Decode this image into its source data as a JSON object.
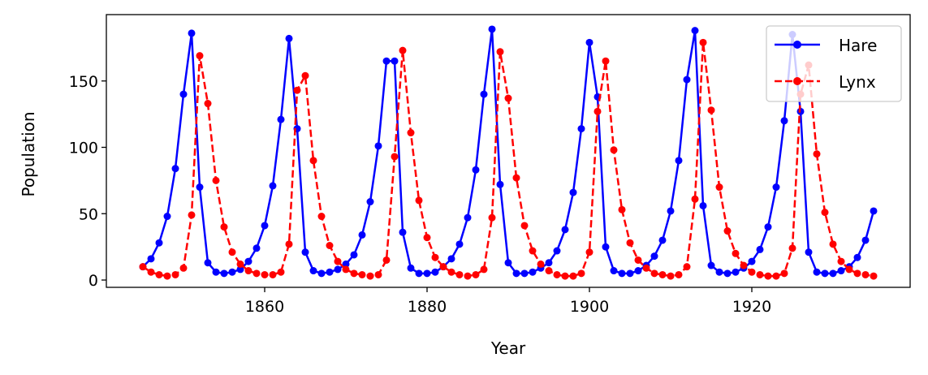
{
  "chart_data": {
    "type": "line",
    "title": "",
    "xlabel": "Year",
    "ylabel": "Population",
    "xlim": [
      1840.5,
      1939.5
    ],
    "ylim": [
      -5.5,
      200
    ],
    "xticks": [
      1860,
      1880,
      1900,
      1920
    ],
    "yticks": [
      0,
      50,
      100,
      150
    ],
    "grid": false,
    "legend_placement": "top-right",
    "x_start": 1845,
    "series": [
      {
        "name": "Hare",
        "color": "#0000ff",
        "style": "solid-marker",
        "values": [
          10,
          16,
          28,
          48,
          84,
          140,
          186,
          70,
          13,
          6,
          5,
          6,
          8,
          14,
          24,
          41,
          71,
          121,
          182,
          114,
          21,
          7,
          5,
          6,
          8,
          12,
          19,
          34,
          59,
          101,
          165,
          165,
          36,
          9,
          5,
          5,
          6,
          10,
          16,
          27,
          47,
          83,
          140,
          189,
          72,
          13,
          5,
          5,
          6,
          9,
          13,
          22,
          38,
          66,
          114,
          179,
          138,
          25,
          7,
          5,
          5,
          7,
          11,
          18,
          30,
          52,
          90,
          151,
          188,
          56,
          11,
          6,
          5,
          6,
          9,
          14,
          23,
          40,
          70,
          120,
          185,
          127,
          21,
          6,
          5,
          5,
          7,
          10,
          17,
          30,
          52
        ]
      },
      {
        "name": "Lynx",
        "color": "#ff0000",
        "style": "dashed-marker",
        "values": [
          10,
          6,
          4,
          3,
          4,
          9,
          49,
          169,
          133,
          75,
          40,
          21,
          12,
          7,
          5,
          4,
          4,
          6,
          27,
          143,
          154,
          90,
          48,
          26,
          14,
          8,
          5,
          4,
          3,
          4,
          15,
          93,
          173,
          111,
          60,
          32,
          17,
          10,
          6,
          4,
          3,
          4,
          8,
          47,
          172,
          137,
          77,
          41,
          22,
          12,
          7,
          4,
          3,
          3,
          5,
          21,
          127,
          165,
          98,
          53,
          28,
          15,
          9,
          5,
          4,
          3,
          4,
          10,
          61,
          179,
          128,
          70,
          37,
          20,
          11,
          6,
          4,
          3,
          3,
          5,
          24,
          140,
          162,
          95,
          51,
          27,
          14,
          8,
          5,
          4,
          3
        ]
      }
    ]
  }
}
